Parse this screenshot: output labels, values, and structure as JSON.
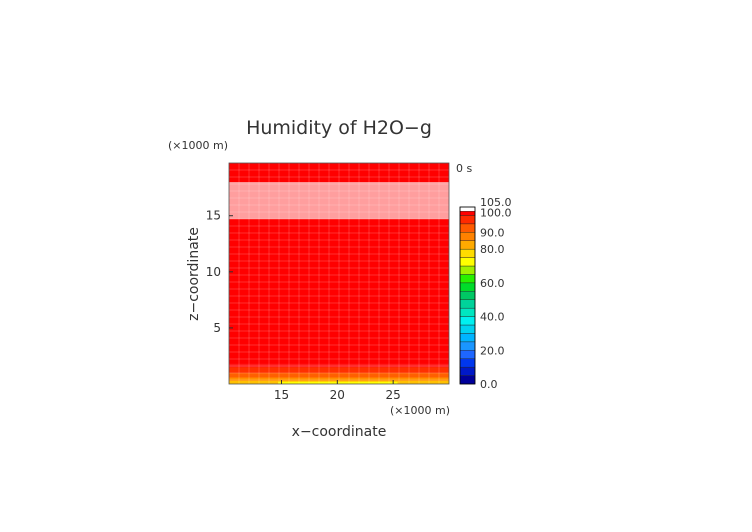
{
  "chart_data": {
    "type": "heatmap",
    "title": "Humidity of H2O−g",
    "time_label": "0 s",
    "xlabel": "x−coordinate",
    "ylabel": "z−coordinate",
    "x_multiplier": "(×1000 m)",
    "z_multiplier": "(×1000 m)",
    "xlim": [
      10.3,
      30
    ],
    "zlim": [
      0,
      19.7
    ],
    "x_ticks": [
      {
        "value": 15,
        "label": "15"
      },
      {
        "value": 20,
        "label": "20"
      },
      {
        "value": 25,
        "label": "25"
      }
    ],
    "z_ticks": [
      {
        "value": 5,
        "label": "5"
      },
      {
        "value": 10,
        "label": "10"
      },
      {
        "value": 15,
        "label": "15"
      }
    ],
    "grid": false,
    "legend": "right",
    "colorbar": {
      "min": 0,
      "max": 105,
      "levels": [
        {
          "lo": 0,
          "hi": 5,
          "color": "#00009a"
        },
        {
          "lo": 5,
          "hi": 10,
          "color": "#0019c8"
        },
        {
          "lo": 10,
          "hi": 15,
          "color": "#0037ee"
        },
        {
          "lo": 15,
          "hi": 20,
          "color": "#1e66ff"
        },
        {
          "lo": 20,
          "hi": 25,
          "color": "#1a96ff"
        },
        {
          "lo": 25,
          "hi": 30,
          "color": "#00b4ff"
        },
        {
          "lo": 30,
          "hi": 35,
          "color": "#00d2f0"
        },
        {
          "lo": 35,
          "hi": 40,
          "color": "#00f0f0"
        },
        {
          "lo": 40,
          "hi": 45,
          "color": "#00e6c0"
        },
        {
          "lo": 45,
          "hi": 50,
          "color": "#00d29a"
        },
        {
          "lo": 50,
          "hi": 55,
          "color": "#00c864"
        },
        {
          "lo": 55,
          "hi": 60,
          "color": "#00dc2a"
        },
        {
          "lo": 60,
          "hi": 65,
          "color": "#28f000"
        },
        {
          "lo": 65,
          "hi": 70,
          "color": "#a0f000"
        },
        {
          "lo": 70,
          "hi": 75,
          "color": "#ffff00"
        },
        {
          "lo": 75,
          "hi": 80,
          "color": "#ffdc00"
        },
        {
          "lo": 80,
          "hi": 85,
          "color": "#ffaa00"
        },
        {
          "lo": 85,
          "hi": 90,
          "color": "#ff8200"
        },
        {
          "lo": 90,
          "hi": 95,
          "color": "#ff5a00"
        },
        {
          "lo": 95,
          "hi": 100,
          "color": "#ff2a00"
        },
        {
          "lo": 100,
          "hi": 102.5,
          "color": "#ff0000"
        },
        {
          "lo": 102.5,
          "hi": 105,
          "color": "#ffffff"
        }
      ],
      "labels": [
        {
          "value": 0,
          "label": "0.0"
        },
        {
          "value": 20,
          "label": "20.0"
        },
        {
          "value": 40,
          "label": "40.0"
        },
        {
          "value": 60,
          "label": "60.0"
        },
        {
          "value": 80,
          "label": "80.0"
        },
        {
          "value": 90,
          "label": "90.0"
        },
        {
          "value": 100,
          "label": "100.0"
        },
        {
          "value": 105,
          "label": "105.0"
        }
      ]
    },
    "field": {
      "background_value": 101,
      "bands": [
        {
          "z_range": [
            14.7,
            18.0
          ],
          "value": 104,
          "color": "#ff9e9e"
        },
        {
          "z_range": [
            1.5,
            1.8
          ],
          "value": 100,
          "color": "#ff1a1a"
        },
        {
          "z_range": [
            1.0,
            1.5
          ],
          "value": 96,
          "color": "#ff3000"
        },
        {
          "z_range": [
            0.6,
            1.0
          ],
          "value": 90,
          "color": "#ff6000"
        },
        {
          "z_range": [
            0.3,
            0.6
          ],
          "value": 82,
          "color": "#ff9000"
        },
        {
          "z_range": [
            0.0,
            0.3
          ],
          "value": 76,
          "color": "#ffc000"
        }
      ],
      "yellow_patch": {
        "x_range": [
          14.7,
          25.4
        ],
        "z_range": [
          0.0,
          0.2
        ],
        "value": 72,
        "color": "#ffff00"
      }
    }
  }
}
